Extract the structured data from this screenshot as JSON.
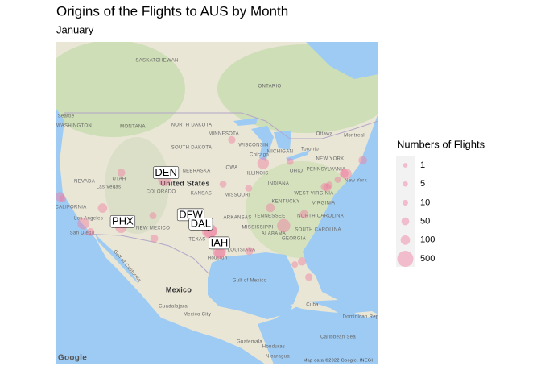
{
  "chart_data": {
    "type": "bubble_map",
    "title": "Origins of the Flights to AUS by Month",
    "subtitle": "January",
    "color": "#f07ca0",
    "size_legend": {
      "title": "Numbers of Flights",
      "values": [
        1,
        5,
        10,
        50,
        100,
        500
      ]
    },
    "points": [
      {
        "lon": -84.43,
        "lat": 33.64,
        "value": 300
      },
      {
        "lon": -87.9,
        "lat": 41.98,
        "value": 200
      },
      {
        "lon": -104.67,
        "lat": 39.86,
        "value": 250,
        "label": "DEN"
      },
      {
        "lon": -97.04,
        "lat": 32.9,
        "value": 400,
        "label": "DFW"
      },
      {
        "lon": -96.85,
        "lat": 32.85,
        "value": 300,
        "label": "DAL"
      },
      {
        "lon": -95.34,
        "lat": 29.98,
        "value": 300,
        "label": "IAH"
      },
      {
        "lon": -95.28,
        "lat": 29.65,
        "value": 150
      },
      {
        "lon": -112.01,
        "lat": 33.43,
        "value": 200,
        "label": "PHX"
      },
      {
        "lon": -118.41,
        "lat": 33.94,
        "value": 200
      },
      {
        "lon": -117.19,
        "lat": 32.73,
        "value": 50
      },
      {
        "lon": -122.38,
        "lat": 37.62,
        "value": 100
      },
      {
        "lon": -115.15,
        "lat": 36.08,
        "value": 100
      },
      {
        "lon": -111.98,
        "lat": 40.79,
        "value": 50
      },
      {
        "lon": -106.38,
        "lat": 31.81,
        "value": 50
      },
      {
        "lon": -106.61,
        "lat": 35.04,
        "value": 30
      },
      {
        "lon": -90.26,
        "lat": 29.99,
        "value": 60
      },
      {
        "lon": -86.68,
        "lat": 36.12,
        "value": 80
      },
      {
        "lon": -81.31,
        "lat": 28.43,
        "value": 60
      },
      {
        "lon": -80.15,
        "lat": 26.07,
        "value": 40
      },
      {
        "lon": -73.78,
        "lat": 40.64,
        "value": 150
      },
      {
        "lon": -74.17,
        "lat": 40.69,
        "value": 80
      },
      {
        "lon": -71.0,
        "lat": 42.36,
        "value": 70
      },
      {
        "lon": -77.04,
        "lat": 38.85,
        "value": 60
      },
      {
        "lon": -77.46,
        "lat": 38.94,
        "value": 50
      },
      {
        "lon": -80.94,
        "lat": 35.21,
        "value": 70
      },
      {
        "lon": -93.22,
        "lat": 44.88,
        "value": 40
      },
      {
        "lon": -83.35,
        "lat": 42.21,
        "value": 30
      },
      {
        "lon": -90.37,
        "lat": 38.75,
        "value": 30
      },
      {
        "lon": -94.71,
        "lat": 39.3,
        "value": 30
      },
      {
        "lon": -121.93,
        "lat": 37.36,
        "value": 30
      },
      {
        "lon": -76.67,
        "lat": 39.18,
        "value": 30
      },
      {
        "lon": -75.24,
        "lat": 39.87,
        "value": 20
      },
      {
        "lon": -82.53,
        "lat": 27.98,
        "value": 20
      }
    ],
    "map_labels": [
      "SASKATCHEWAN",
      "ONTARIO",
      "Seattle",
      "WASHINGTON",
      "MONTANA",
      "NORTH DAKOTA",
      "MINNESOTA",
      "SOUTH DAKOTA",
      "WISCONSIN",
      "MICHIGAN",
      "Ottawa",
      "Montreal",
      "Toronto",
      "NEW YORK",
      "New York",
      "Chicago",
      "NEBRASKA",
      "IOWA",
      "ILLINOIS",
      "OHIO",
      "PENNSYLVANIA",
      "NEVADA",
      "UTAH",
      "United States",
      "COLORADO",
      "KANSAS",
      "MISSOURI",
      "INDIANA",
      "CALIFORNIA",
      "Las Vegas",
      "Los Angeles",
      "San Diego",
      "NEW MEXICO",
      "TENNESSEE",
      "KENTUCKY",
      "WEST VIRGINIA",
      "VIRGINIA",
      "NORTH CAROLINA",
      "SOUTH CAROLINA",
      "ARKANSAS",
      "MISSISSIPPI",
      "ALABAMA",
      "GEORGIA",
      "TEXAS",
      "LOUISIANA",
      "Houston",
      "Gulf of California",
      "Gulf of Mexico",
      "Mexico",
      "Guadalajara",
      "Mexico City",
      "Cuba",
      "Dominican Republic",
      "Caribbean Sea",
      "Guatemala",
      "Honduras",
      "Nicaragua",
      "Google",
      "Map data ©2022 Google, INEGI"
    ]
  }
}
